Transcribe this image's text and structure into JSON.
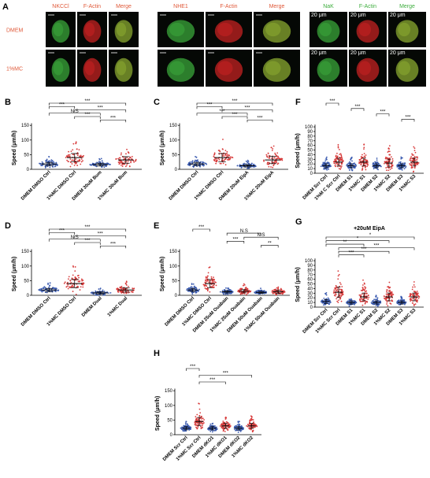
{
  "panel_letters": {
    "a": "A",
    "b": "B",
    "c": "C",
    "d": "D",
    "e": "E",
    "f": "F",
    "g": "G",
    "h": "H"
  },
  "micrographs": {
    "group1": {
      "headers": [
        "NKCCl",
        "F-Actin",
        "Merge"
      ],
      "header_colors": [
        "#e05a3a",
        "#e05a3a",
        "#e05a3a"
      ]
    },
    "group2": {
      "headers": [
        "NHE1",
        "F-Actin",
        "Merge"
      ],
      "header_colors": [
        "#e05a3a",
        "#e05a3a",
        "#e05a3a"
      ]
    },
    "group3": {
      "headers": [
        "NaK",
        "F-Actin",
        "Merge"
      ],
      "header_colors": [
        "#3fae3f",
        "#3fae3f",
        "#3fae3f"
      ],
      "scale_label": "20 μm"
    },
    "row_labels": [
      "DMEM",
      "1%MC"
    ],
    "row_label_color": "#e05a3a"
  },
  "chart_data": [
    {
      "id": "B",
      "type": "scatter",
      "ylabel": "Speed (μm/h)",
      "ylim": [
        0,
        150
      ],
      "yticks": [
        0,
        50,
        100,
        150
      ],
      "categories": [
        "DMEM DMSO Ctrl",
        "1%MC DMSO Ctrl",
        "DMEM 30uM Bum",
        "1%MC 30uM Bum"
      ],
      "colors": [
        "#3b5bb0",
        "#d83b3b",
        "#3b5bb0",
        "#d83b3b"
      ],
      "means": [
        18,
        40,
        16,
        32
      ],
      "spread": [
        8,
        20,
        7,
        16
      ],
      "brackets": [
        {
          "from": 0,
          "to": 3,
          "label": "***"
        },
        {
          "from": 0,
          "to": 1,
          "label": "***"
        },
        {
          "from": 1,
          "to": 3,
          "label": "***"
        },
        {
          "from": 0,
          "to": 2,
          "label": "N.S"
        },
        {
          "from": 1,
          "to": 2,
          "label": "***"
        },
        {
          "from": 2,
          "to": 3,
          "label": "***"
        }
      ]
    },
    {
      "id": "C",
      "type": "scatter",
      "ylabel": "Speed (μm/h)",
      "ylim": [
        0,
        150
      ],
      "yticks": [
        0,
        50,
        100,
        150
      ],
      "categories": [
        "DMEM DMSO Ctrl",
        "1%MC DMSO Ctrl",
        "DMEM 20uM EipA",
        "1%MC 20uM EipA"
      ],
      "colors": [
        "#3b5bb0",
        "#d83b3b",
        "#3b5bb0",
        "#d83b3b"
      ],
      "means": [
        18,
        40,
        12,
        32
      ],
      "spread": [
        8,
        20,
        6,
        18
      ],
      "brackets": [
        {
          "from": 0,
          "to": 3,
          "label": "***"
        },
        {
          "from": 0,
          "to": 1,
          "label": "***"
        },
        {
          "from": 1,
          "to": 3,
          "label": "***"
        },
        {
          "from": 0,
          "to": 2,
          "label": "***"
        },
        {
          "from": 1,
          "to": 2,
          "label": "***"
        },
        {
          "from": 2,
          "to": 3,
          "label": "***"
        }
      ]
    },
    {
      "id": "D",
      "type": "scatter",
      "ylabel": "Speed (μm/h)",
      "ylim": [
        0,
        150
      ],
      "yticks": [
        0,
        50,
        100,
        150
      ],
      "categories": [
        "DMEM DMSO Ctrl",
        "1%MC DMSO Ctrl",
        "DMEM Dual",
        "1%MC Dual"
      ],
      "colors": [
        "#3b5bb0",
        "#d83b3b",
        "#3b5bb0",
        "#d83b3b"
      ],
      "means": [
        18,
        40,
        8,
        18
      ],
      "spread": [
        8,
        20,
        5,
        10
      ],
      "brackets": [
        {
          "from": 0,
          "to": 3,
          "label": "***"
        },
        {
          "from": 0,
          "to": 1,
          "label": "***"
        },
        {
          "from": 1,
          "to": 3,
          "label": "***"
        },
        {
          "from": 0,
          "to": 2,
          "label": "N.S"
        },
        {
          "from": 1,
          "to": 2,
          "label": "***"
        },
        {
          "from": 2,
          "to": 3,
          "label": "***"
        }
      ]
    },
    {
      "id": "E",
      "type": "scatter",
      "ylabel": "Speed (μm/h)",
      "ylim": [
        0,
        150
      ],
      "yticks": [
        0,
        50,
        100,
        150
      ],
      "categories": [
        "DMEM DMSO Ctrl",
        "1%MC DMSO Ctrl",
        "DMEM 25uM Ouabain",
        "1%MC 25uM Ouabain",
        "DMEM 50uM Ouabain",
        "1%MC 50uM Ouabain"
      ],
      "colors": [
        "#3b5bb0",
        "#d83b3b",
        "#3b5bb0",
        "#d83b3b",
        "#3b5bb0",
        "#d83b3b"
      ],
      "means": [
        18,
        40,
        12,
        14,
        10,
        12
      ],
      "spread": [
        8,
        20,
        6,
        8,
        5,
        8
      ],
      "brackets": [
        {
          "from": 0,
          "to": 1,
          "label": "***"
        },
        {
          "from": 2,
          "to": 4,
          "label": "N.S"
        },
        {
          "from": 3,
          "to": 5,
          "label": "N.S"
        },
        {
          "from": 2,
          "to": 3,
          "label": "***"
        },
        {
          "from": 4,
          "to": 5,
          "label": "**"
        }
      ]
    },
    {
      "id": "F",
      "type": "scatter",
      "ylabel": "Speed (μm/h)",
      "ylim": [
        0,
        100
      ],
      "yticks": [
        0,
        10,
        20,
        30,
        40,
        50,
        60,
        70,
        80,
        90,
        100
      ],
      "categories": [
        "DMEM Scr Ctrl",
        "1%M C Scr Ctrl",
        "DMEM S1",
        "1%MC S1",
        "DMEM S2",
        "1%MC S2",
        "DMEM S3",
        "1%MC S3"
      ],
      "colors": [
        "#3b5bb0",
        "#d83b3b",
        "#3b5bb0",
        "#d83b3b",
        "#3b5bb0",
        "#d83b3b",
        "#3b5bb0",
        "#d83b3b"
      ],
      "means": [
        16,
        24,
        16,
        24,
        16,
        22,
        16,
        24
      ],
      "spread": [
        6,
        12,
        6,
        12,
        6,
        12,
        6,
        12
      ],
      "brackets": [
        {
          "from": 0,
          "to": 1,
          "label": "***"
        },
        {
          "from": 2,
          "to": 3,
          "label": "***"
        },
        {
          "from": 4,
          "to": 5,
          "label": "***"
        },
        {
          "from": 6,
          "to": 7,
          "label": "***"
        }
      ]
    },
    {
      "id": "G",
      "type": "scatter",
      "title": "+20uM EipA",
      "ylabel": "Speed (μm/h)",
      "ylim": [
        0,
        100
      ],
      "yticks": [
        0,
        10,
        20,
        30,
        40,
        50,
        60,
        70,
        80,
        90,
        100
      ],
      "categories": [
        "DMEM Scr Ctrl",
        "1%MC Scr Ctrl",
        "DMEM S1",
        "1%MC S1",
        "DMEM S2",
        "1%MC S2",
        "DMEM S3",
        "1%MC S3"
      ],
      "colors": [
        "#3b5bb0",
        "#d83b3b",
        "#3b5bb0",
        "#d83b3b",
        "#3b5bb0",
        "#d83b3b",
        "#3b5bb0",
        "#d83b3b"
      ],
      "means": [
        12,
        32,
        10,
        22,
        10,
        22,
        10,
        22
      ],
      "spread": [
        6,
        16,
        5,
        12,
        5,
        12,
        5,
        12
      ],
      "brackets": [
        {
          "from": 0,
          "to": 7,
          "label": "*"
        },
        {
          "from": 0,
          "to": 5,
          "label": "*"
        },
        {
          "from": 0,
          "to": 3,
          "label": "**"
        },
        {
          "from": 1,
          "to": 7,
          "label": "***"
        },
        {
          "from": 1,
          "to": 5,
          "label": "***"
        },
        {
          "from": 1,
          "to": 3,
          "label": "***"
        }
      ]
    },
    {
      "id": "H",
      "type": "scatter",
      "ylabel": "Speed (μm/h)",
      "ylim": [
        0,
        150
      ],
      "yticks": [
        0,
        50,
        100,
        150
      ],
      "categories": [
        "DMEM Scr Ctrl",
        "1%MC Scr Ctrl",
        "DMEM dKO1",
        "1%MC dKO1",
        "DMEM dKO2",
        "1%MC dKO2"
      ],
      "colors": [
        "#3b5bb0",
        "#d83b3b",
        "#3b5bb0",
        "#d83b3b",
        "#3b5bb0",
        "#d83b3b"
      ],
      "means": [
        22,
        45,
        22,
        30,
        22,
        30
      ],
      "spread": [
        8,
        20,
        8,
        12,
        8,
        12
      ],
      "brackets": [
        {
          "from": 0,
          "to": 1,
          "label": "***"
        },
        {
          "from": 1,
          "to": 5,
          "label": "***"
        },
        {
          "from": 1,
          "to": 3,
          "label": "***"
        }
      ]
    }
  ]
}
